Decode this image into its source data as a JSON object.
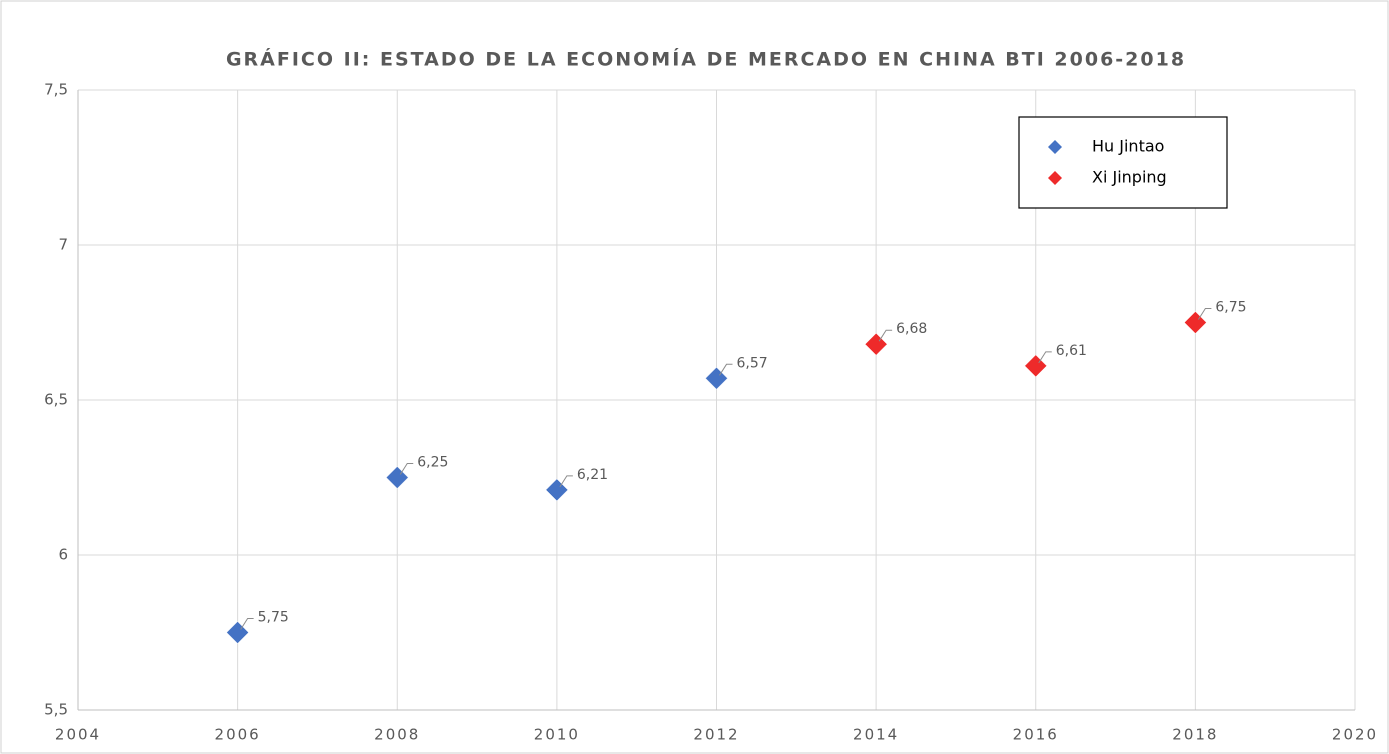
{
  "chart_data": {
    "type": "scatter",
    "title": "GRÁFICO II: ESTADO DE LA ECONOMÍA DE MERCADO EN CHINA BTI 2006-2018",
    "series": [
      {
        "name": "Hu Jintao",
        "color": "#4472c4",
        "x": [
          2006,
          2008,
          2010,
          2012
        ],
        "values": [
          5.75,
          6.25,
          6.21,
          6.57
        ],
        "value_labels": [
          "5,75",
          "6,25",
          "6,21",
          "6,57"
        ]
      },
      {
        "name": "Xi Jinping",
        "color": "#ee2a2a",
        "x": [
          2014,
          2016,
          2018
        ],
        "values": [
          6.68,
          6.61,
          6.75
        ],
        "value_labels": [
          "6,68",
          "6,61",
          "6,75"
        ]
      }
    ],
    "xlim": [
      2004,
      2020
    ],
    "xticks": [
      2004,
      2006,
      2008,
      2010,
      2012,
      2014,
      2016,
      2018,
      2020
    ],
    "ylim": [
      5.5,
      7.5
    ],
    "yticks": [
      {
        "value": 5.5,
        "label": "5,5"
      },
      6,
      {
        "value": 6.5,
        "label": "6,5"
      },
      7,
      {
        "value": 7.5,
        "label": "7,5"
      }
    ],
    "grid": true,
    "legend": "upper right"
  }
}
